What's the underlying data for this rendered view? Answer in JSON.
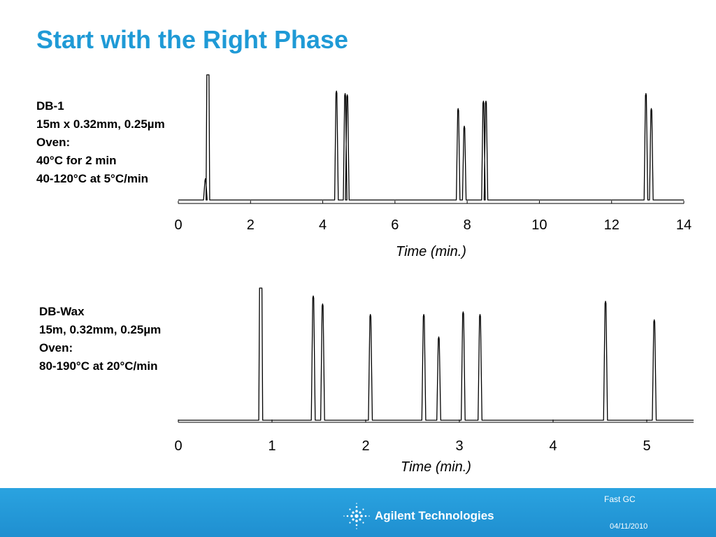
{
  "slide": {
    "title": "Start with the Right Phase"
  },
  "panel_top": {
    "lines": [
      "DB-1",
      "15m x 0.32mm, 0.25µm",
      "Oven:",
      "40°C for 2 min",
      "40-120°C at 5°C/min"
    ]
  },
  "panel_bottom": {
    "lines": [
      "DB-Wax",
      "15m, 0.32mm, 0.25µm",
      "Oven:",
      "80-190°C at 20°C/min"
    ]
  },
  "footer": {
    "company": "Agilent Technologies",
    "topic": "Fast GC",
    "date": "04/11/2010",
    "brand_color": "#1f9ad6",
    "logo_icon": "agilent-spark-icon"
  },
  "chart_data": [
    {
      "type": "line",
      "series_kind": "chromatogram",
      "xlabel": "Time (min.)",
      "ylabel": "",
      "xlim": [
        0,
        14
      ],
      "ylim": [
        0,
        1
      ],
      "x_ticks": [
        0,
        2,
        4,
        6,
        8,
        10,
        12,
        14
      ],
      "grid": false,
      "peaks": [
        {
          "x": 0.75,
          "height": 0.17
        },
        {
          "x": 0.82,
          "height": 1.0,
          "flat_top": true
        },
        {
          "x": 4.38,
          "height": 0.87
        },
        {
          "x": 4.62,
          "height": 0.85
        },
        {
          "x": 4.68,
          "height": 0.84
        },
        {
          "x": 7.75,
          "height": 0.73
        },
        {
          "x": 7.92,
          "height": 0.59
        },
        {
          "x": 8.45,
          "height": 0.79
        },
        {
          "x": 8.52,
          "height": 0.79
        },
        {
          "x": 12.95,
          "height": 0.85
        },
        {
          "x": 13.1,
          "height": 0.73
        }
      ]
    },
    {
      "type": "line",
      "series_kind": "chromatogram",
      "xlabel": "Time (min.)",
      "ylabel": "",
      "xlim": [
        0,
        5.5
      ],
      "ylim": [
        0,
        1
      ],
      "x_ticks": [
        0,
        1,
        2,
        3,
        4,
        5
      ],
      "grid": false,
      "peaks": [
        {
          "x": 0.88,
          "height": 1.0,
          "flat_top": true
        },
        {
          "x": 1.44,
          "height": 0.94
        },
        {
          "x": 1.54,
          "height": 0.88
        },
        {
          "x": 2.05,
          "height": 0.8
        },
        {
          "x": 2.62,
          "height": 0.8
        },
        {
          "x": 2.78,
          "height": 0.63
        },
        {
          "x": 3.04,
          "height": 0.82
        },
        {
          "x": 3.22,
          "height": 0.8
        },
        {
          "x": 4.56,
          "height": 0.9
        },
        {
          "x": 5.08,
          "height": 0.76
        }
      ]
    }
  ]
}
